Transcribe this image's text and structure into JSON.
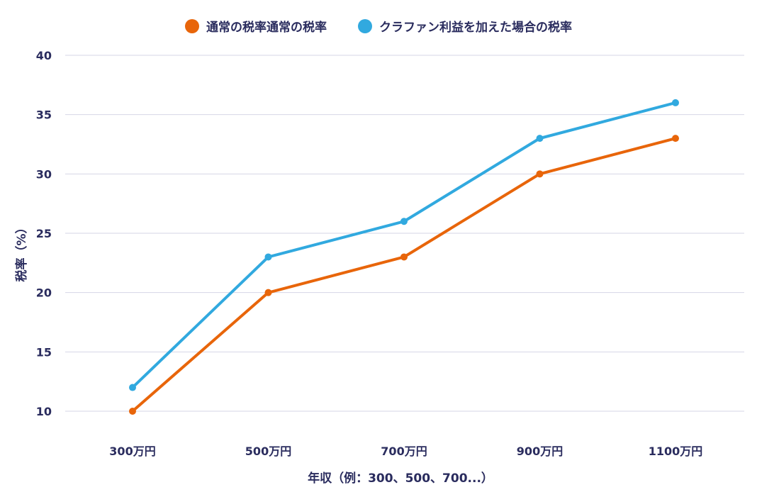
{
  "chart_data": {
    "type": "line",
    "title": "",
    "xlabel": "年収（例：300、500、700...）",
    "ylabel": "税率（%）",
    "categories": [
      "300万円",
      "500万円",
      "700万円",
      "900万円",
      "1100万円"
    ],
    "ylim": [
      10,
      40
    ],
    "yticks": [
      10,
      15,
      20,
      25,
      30,
      35,
      40
    ],
    "grid": true,
    "legend_position": "top-center",
    "series": [
      {
        "name": "通常の税率通常の税率",
        "color": "#e8650a",
        "values": [
          10,
          20,
          23,
          30,
          33
        ]
      },
      {
        "name": "クラファン利益を加えた場合の税率",
        "color": "#31a9df",
        "values": [
          12,
          23,
          26,
          33,
          36
        ]
      }
    ]
  },
  "colors": {
    "text": "#2a2c5e",
    "grid": "#d6d6e6"
  }
}
